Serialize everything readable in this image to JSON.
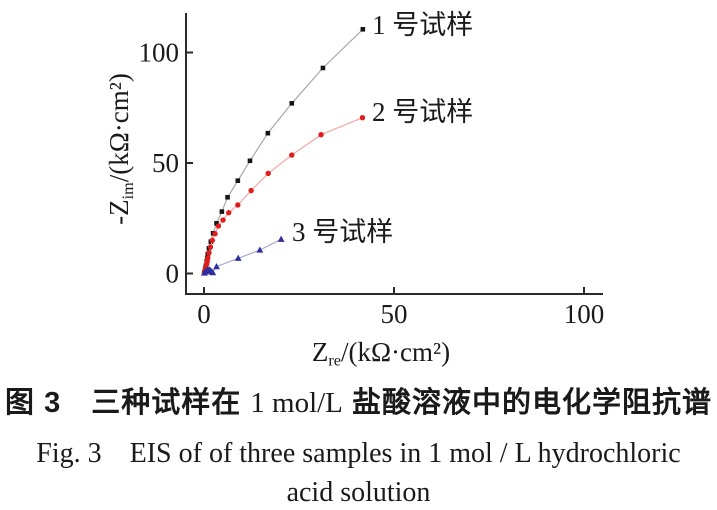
{
  "figure": {
    "caption_line1": {
      "zh_prefix": "图 3　三种试样在 ",
      "latin": "1 mol/L",
      "zh_suffix": " 盐酸溶液中的电化学阻抗谱"
    },
    "caption_line2": "Fig. 3　EIS of of three samples in 1 mol / L hydrochloric",
    "caption_line3": "acid solution"
  },
  "chart_data": {
    "type": "scatter",
    "title": "",
    "xlabel": {
      "prefix": "Z",
      "sub": "re",
      "rest": "/(kΩ·cm²)"
    },
    "ylabel": {
      "prefix": "-Z",
      "sub": "im",
      "rest": "/(kΩ·cm²)"
    },
    "xlim": [
      0,
      105
    ],
    "ylim": [
      0,
      118
    ],
    "grid": false,
    "legend_position": "inline-at-curve-ends",
    "x_ticks": [
      {
        "value": 0,
        "label": "0"
      },
      {
        "value": 50,
        "label": "50"
      },
      {
        "value": 100,
        "label": "100"
      }
    ],
    "y_ticks": [
      {
        "value": 0,
        "label": "0"
      },
      {
        "value": 50,
        "label": "50"
      },
      {
        "value": 100,
        "label": "100"
      }
    ],
    "axis_color": "#2b2b2b",
    "text_color": "#1a1a1a",
    "series": [
      {
        "name": "1 号试样",
        "marker": "square",
        "marker_color": "#161616",
        "line_color": "#a8a8a8",
        "points": [
          [
            0.1,
            0.4
          ],
          [
            0.2,
            1.0
          ],
          [
            0.3,
            1.8
          ],
          [
            0.4,
            2.6
          ],
          [
            0.5,
            3.5
          ],
          [
            0.7,
            5.5
          ],
          [
            0.85,
            7.0
          ],
          [
            1.0,
            8.8
          ],
          [
            1.3,
            11.4
          ],
          [
            1.8,
            14.4
          ],
          [
            2.4,
            18.2
          ],
          [
            3.3,
            22.7
          ],
          [
            4.7,
            28.0
          ],
          [
            6.2,
            34.5
          ],
          [
            8.9,
            42.0
          ],
          [
            12.1,
            51.0
          ],
          [
            16.8,
            63.5
          ],
          [
            23.1,
            77.0
          ],
          [
            31.3,
            93.0
          ],
          [
            41.8,
            110.5
          ]
        ]
      },
      {
        "name": "2 号试样",
        "marker": "circle",
        "marker_color": "#e01c1c",
        "line_color": "#f0a8a8",
        "points": [
          [
            0.1,
            0.3
          ],
          [
            0.2,
            0.8
          ],
          [
            0.3,
            1.4
          ],
          [
            0.4,
            2.0
          ],
          [
            0.5,
            2.7
          ],
          [
            0.7,
            4.2
          ],
          [
            0.85,
            5.5
          ],
          [
            1.0,
            7.0
          ],
          [
            1.3,
            9.3
          ],
          [
            1.7,
            12.0
          ],
          [
            2.2,
            15.0
          ],
          [
            2.9,
            18.0
          ],
          [
            3.8,
            21.5
          ],
          [
            5.0,
            24.2
          ],
          [
            6.5,
            27.5
          ],
          [
            8.9,
            31.0
          ],
          [
            12.4,
            37.5
          ],
          [
            16.9,
            45.3
          ],
          [
            23.1,
            53.6
          ],
          [
            30.8,
            62.8
          ],
          [
            41.7,
            70.5
          ]
        ]
      },
      {
        "name": "3 号试样",
        "marker": "triangle",
        "marker_color": "#2e2e9d",
        "line_color": "#a8a8d8",
        "points": [
          [
            0.1,
            0.2
          ],
          [
            0.3,
            0.7
          ],
          [
            0.5,
            1.1
          ],
          [
            0.8,
            1.5
          ],
          [
            1.1,
            1.7
          ],
          [
            1.4,
            1.6
          ],
          [
            1.7,
            1.3
          ],
          [
            2.0,
            0.8
          ],
          [
            2.3,
            0.4
          ],
          [
            3.3,
            3.1
          ],
          [
            9.0,
            6.9
          ],
          [
            14.7,
            10.6
          ],
          [
            20.3,
            15.5
          ]
        ]
      }
    ]
  }
}
